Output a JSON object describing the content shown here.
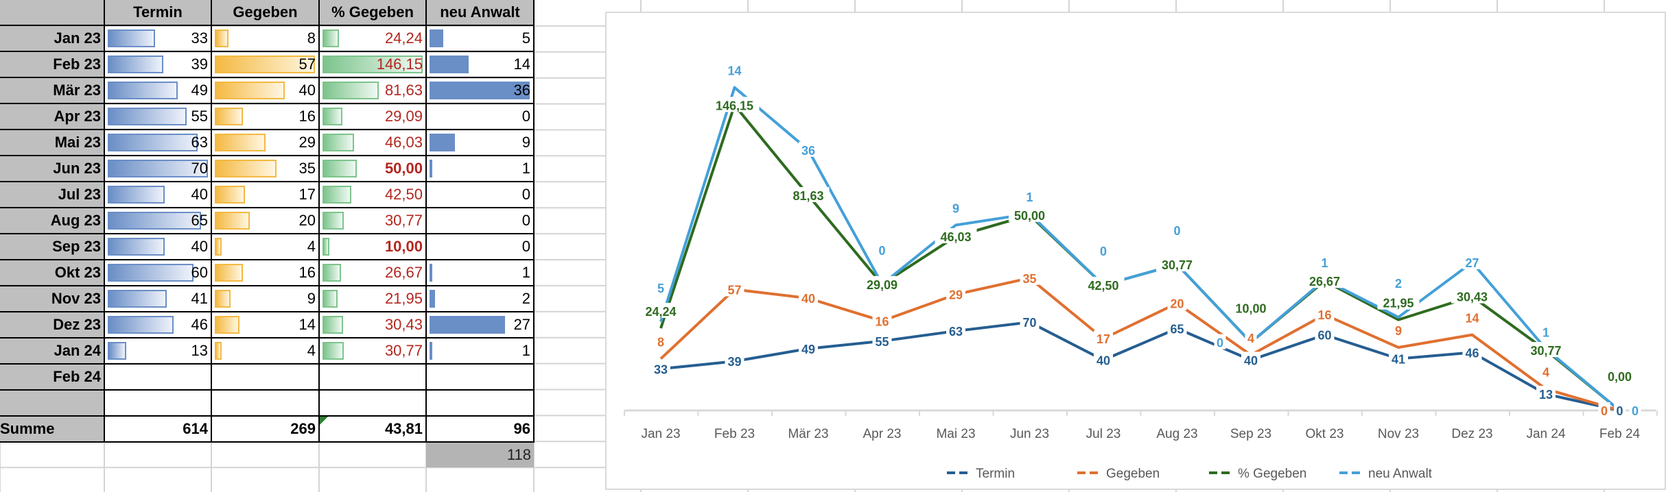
{
  "table": {
    "headers": [
      "Termin",
      "Gegeben",
      "% Gegeben",
      "neu Anwalt"
    ],
    "rows": [
      {
        "month": "Jan 23",
        "termin": 33,
        "gegeben": 8,
        "pct": "24,24",
        "neu": 5
      },
      {
        "month": "Feb 23",
        "termin": 39,
        "gegeben": 57,
        "pct": "146,15",
        "neu": 14
      },
      {
        "month": "Mär 23",
        "termin": 49,
        "gegeben": 40,
        "pct": "81,63",
        "neu": 36
      },
      {
        "month": "Apr 23",
        "termin": 55,
        "gegeben": 16,
        "pct": "29,09",
        "neu": 0
      },
      {
        "month": "Mai 23",
        "termin": 63,
        "gegeben": 29,
        "pct": "46,03",
        "neu": 9
      },
      {
        "month": "Jun 23",
        "termin": 70,
        "gegeben": 35,
        "pct": "50,00",
        "neu": 1,
        "pct_bold": true
      },
      {
        "month": "Jul 23",
        "termin": 40,
        "gegeben": 17,
        "pct": "42,50",
        "neu": 0
      },
      {
        "month": "Aug 23",
        "termin": 65,
        "gegeben": 20,
        "pct": "30,77",
        "neu": 0
      },
      {
        "month": "Sep 23",
        "termin": 40,
        "gegeben": 4,
        "pct": "10,00",
        "neu": 0,
        "pct_bold": true
      },
      {
        "month": "Okt 23",
        "termin": 60,
        "gegeben": 16,
        "pct": "26,67",
        "neu": 1
      },
      {
        "month": "Nov 23",
        "termin": 41,
        "gegeben": 9,
        "pct": "21,95",
        "neu": 2
      },
      {
        "month": "Dez 23",
        "termin": 46,
        "gegeben": 14,
        "pct": "30,43",
        "neu": 27
      },
      {
        "month": "Jan 24",
        "termin": 13,
        "gegeben": 4,
        "pct": "30,77",
        "neu": 1
      },
      {
        "month": "Feb 24"
      },
      {
        "month": ""
      }
    ],
    "databar_max": {
      "termin": 70,
      "gegeben": 57,
      "pct": 146.15,
      "neu": 36
    },
    "sum": {
      "label": "Summe",
      "termin": "614",
      "gegeben": "269",
      "pct": "43,81",
      "neu": "96"
    },
    "extra_value": "118"
  },
  "chart_data": {
    "type": "line",
    "stacked": true,
    "categories": [
      "Jan 23",
      "Feb 23",
      "Mär 23",
      "Apr 23",
      "Mai 23",
      "Jun 23",
      "Jul 23",
      "Aug 23",
      "Sep 23",
      "Okt 23",
      "Nov 23",
      "Dez 23",
      "Jan 24",
      "Feb 24"
    ],
    "series": [
      {
        "name": "Termin",
        "color": "#255e91",
        "values": [
          33,
          39,
          49,
          55,
          63,
          70,
          40,
          65,
          40,
          60,
          41,
          46,
          13,
          0
        ],
        "labels": [
          "33",
          "39",
          "49",
          "55",
          "63",
          "70",
          "40",
          "65",
          "40",
          "60",
          "41",
          "46",
          "13",
          "0"
        ]
      },
      {
        "name": "Gegeben",
        "color": "#e07030",
        "values": [
          8,
          57,
          40,
          16,
          29,
          35,
          17,
          20,
          4,
          16,
          9,
          14,
          4,
          0
        ],
        "labels": [
          "8",
          "57",
          "40",
          "16",
          "29",
          "35",
          "17",
          "20",
          "4",
          "16",
          "9",
          "14",
          "4",
          "0"
        ]
      },
      {
        "name": "% Gegeben",
        "color": "#2e6b1f",
        "values": [
          24.24,
          146.15,
          81.63,
          29.09,
          46.03,
          50.0,
          42.5,
          30.77,
          10.0,
          26.67,
          21.95,
          30.43,
          30.77,
          0
        ],
        "labels": [
          "24,24",
          "146,15",
          "81,63",
          "29,09",
          "46,03",
          "50,00",
          "42,50",
          "30,77",
          "10,00",
          "26,67",
          "21,95",
          "30,43",
          "30,77",
          "0,00"
        ]
      },
      {
        "name": "neu Anwalt",
        "color": "#44a0d8",
        "values": [
          5,
          14,
          36,
          0,
          9,
          1,
          0,
          0,
          0,
          1,
          2,
          27,
          1,
          0
        ],
        "labels": [
          "5",
          "14",
          "36",
          "0",
          "9",
          "1",
          "0",
          "0",
          "0",
          "1",
          "2",
          "27",
          "1",
          "0"
        ]
      }
    ],
    "ylim": [
      0,
      300
    ],
    "legend": "bottom",
    "grid": false
  }
}
